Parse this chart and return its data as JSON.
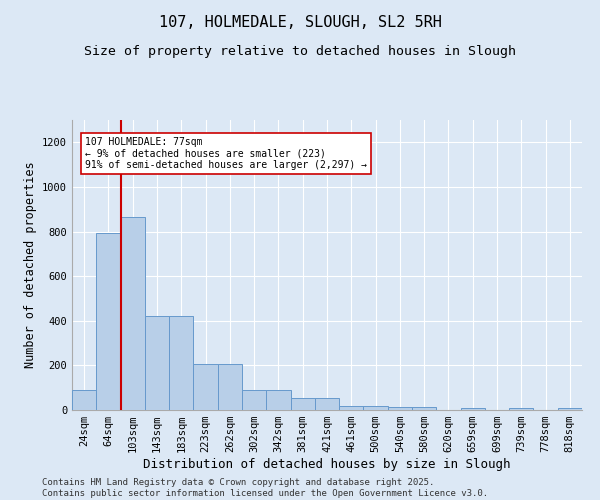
{
  "title": "107, HOLMEDALE, SLOUGH, SL2 5RH",
  "subtitle": "Size of property relative to detached houses in Slough",
  "xlabel": "Distribution of detached houses by size in Slough",
  "ylabel": "Number of detached properties",
  "categories": [
    "24sqm",
    "64sqm",
    "103sqm",
    "143sqm",
    "183sqm",
    "223sqm",
    "262sqm",
    "302sqm",
    "342sqm",
    "381sqm",
    "421sqm",
    "461sqm",
    "500sqm",
    "540sqm",
    "580sqm",
    "620sqm",
    "659sqm",
    "699sqm",
    "739sqm",
    "778sqm",
    "818sqm"
  ],
  "values": [
    90,
    795,
    865,
    420,
    420,
    205,
    205,
    90,
    90,
    55,
    55,
    20,
    20,
    15,
    15,
    0,
    10,
    0,
    10,
    0,
    10
  ],
  "bar_color": "#b8cfe8",
  "bar_edge_color": "#6699cc",
  "vline_x_index": 1.5,
  "vline_color": "#cc0000",
  "annotation_text": "107 HOLMEDALE: 77sqm\n← 9% of detached houses are smaller (223)\n91% of semi-detached houses are larger (2,297) →",
  "annotation_box_color": "#ffffff",
  "annotation_box_edge": "#cc0000",
  "ylim": [
    0,
    1300
  ],
  "yticks": [
    0,
    200,
    400,
    600,
    800,
    1000,
    1200
  ],
  "background_color": "#dce8f5",
  "grid_color": "#ffffff",
  "footer": "Contains HM Land Registry data © Crown copyright and database right 2025.\nContains public sector information licensed under the Open Government Licence v3.0.",
  "title_fontsize": 11,
  "subtitle_fontsize": 9.5,
  "xlabel_fontsize": 9,
  "ylabel_fontsize": 8.5,
  "tick_fontsize": 7.5,
  "footer_fontsize": 6.5
}
